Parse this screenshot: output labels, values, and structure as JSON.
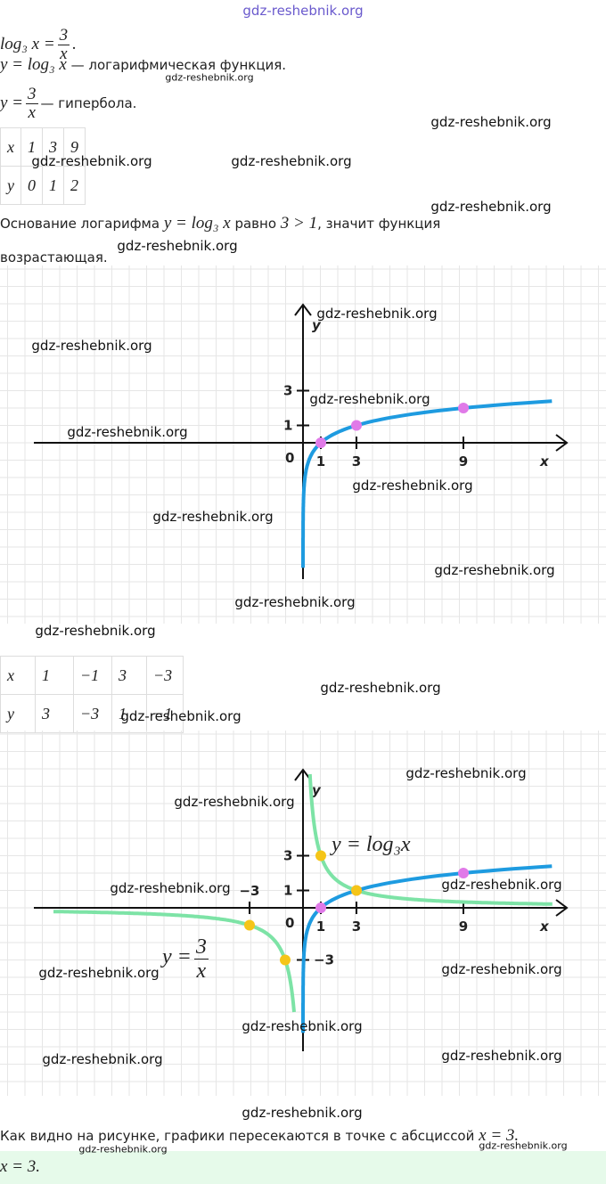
{
  "line1": {
    "lhs": "log₃ x =",
    "num": "3",
    "den": "x",
    "end": "."
  },
  "line2": {
    "math": "y = log₃ x",
    "text": "— логарифмическая функция."
  },
  "line3": {
    "lhs": "y =",
    "num": "3",
    "den": "x",
    "text": "— гипербола."
  },
  "table1": {
    "rows": [
      [
        "x",
        "1",
        "3",
        "9"
      ],
      [
        "y",
        "0",
        "1",
        "2"
      ]
    ]
  },
  "line4": {
    "t1": "Основание логарифма",
    "m1": "y = log₃ x",
    "t2": "равно",
    "m2": "3 > 1",
    "t3": ", значит функция возрастающая."
  },
  "graph1": {
    "x_label": "x",
    "y_label": "y",
    "origin": "0",
    "x_ticks": [
      "1",
      "3",
      "9"
    ],
    "y_ticks": [
      "1",
      "3"
    ]
  },
  "table2": {
    "rows": [
      [
        "x",
        "1",
        "−1",
        "3",
        "−3"
      ],
      [
        "y",
        "3",
        "−3",
        "1",
        "−1"
      ]
    ]
  },
  "graph2": {
    "x_label": "x",
    "y_label": "y",
    "origin": "0",
    "x_ticks": [
      "−3",
      "1",
      "3",
      "9"
    ],
    "y_ticks": [
      "1",
      "3",
      "−3"
    ],
    "log_label": "y = log₃x",
    "hyp_label": {
      "lhs": "y =",
      "num": "3",
      "den": "x"
    }
  },
  "conclusion": {
    "text": "Как видно на рисунке, графики пересекаются в точке с абсциссой",
    "math": "x = 3."
  },
  "answer": "x = 3.",
  "watermarks": [
    "gdz-reshebnik.org",
    "gdz-reshebnik.org",
    "gdz-reshebnik.org",
    "gdz-reshebnik.org",
    "gdz-reshebnik.org",
    "gdz-reshebnik.org",
    "gdz-reshebnik.org",
    "gdz-reshebnik.org",
    "gdz-reshebnik.org",
    "gdz-reshebnik.org",
    "gdz-reshebnik.org",
    "gdz-reshebnik.org",
    "gdz-reshebnik.org",
    "gdz-reshebnik.org",
    "gdz-reshebnik.org",
    "gdz-reshebnik.org",
    "gdz-reshebnik.org",
    "gdz-reshebnik.org",
    "gdz-reshebnik.org",
    "gdz-reshebnik.org",
    "gdz-reshebnik.org",
    "gdz-reshebnik.org",
    "gdz-reshebnik.org",
    "gdz-reshebnik.org",
    "gdz-reshebnik.org",
    "gdz-reshebnik.org",
    "gdz-reshebnik.org",
    "gdz-reshebnik.org",
    "gdz-reshebnik.org",
    "gdz-reshebnik.org"
  ]
}
